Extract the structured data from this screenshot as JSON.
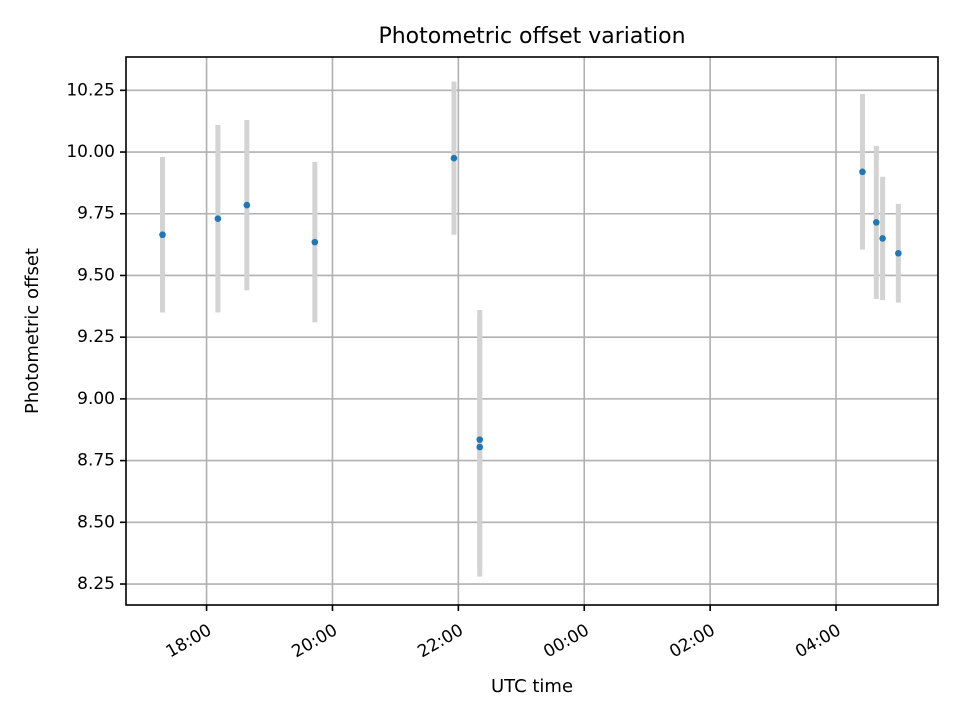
{
  "chart_data": {
    "type": "scatter",
    "title": "Photometric offset variation",
    "xlabel": "UTC time",
    "ylabel": "Photometric offset",
    "x_axis": {
      "type": "time",
      "range_hours_utc": [
        16.72,
        29.62
      ],
      "ticks": [
        {
          "hour": 18,
          "label": "18:00"
        },
        {
          "hour": 20,
          "label": "20:00"
        },
        {
          "hour": 22,
          "label": "22:00"
        },
        {
          "hour": 24,
          "label": "00:00"
        },
        {
          "hour": 26,
          "label": "02:00"
        },
        {
          "hour": 28,
          "label": "04:00"
        }
      ],
      "tick_label_rotation": -30
    },
    "y_axis": {
      "range": [
        8.165,
        10.385
      ],
      "ticks": [
        8.25,
        8.5,
        8.75,
        9.0,
        9.25,
        9.5,
        9.75,
        10.0,
        10.25
      ],
      "tick_labels": [
        "8.25",
        "8.50",
        "8.75",
        "9.00",
        "9.25",
        "9.50",
        "9.75",
        "10.00",
        "10.25"
      ]
    },
    "grid": true,
    "marker_color": "#1f77b4",
    "errorbar_color": "#d3d3d3",
    "points": [
      {
        "time": "17:18",
        "hour": 17.3,
        "y": 9.665,
        "err": 0.315
      },
      {
        "time": "18:11",
        "hour": 18.18,
        "y": 9.73,
        "err": 0.38
      },
      {
        "time": "18:38",
        "hour": 18.64,
        "y": 9.785,
        "err": 0.345
      },
      {
        "time": "19:43",
        "hour": 19.72,
        "y": 9.635,
        "err": 0.325
      },
      {
        "time": "21:56",
        "hour": 21.93,
        "y": 9.975,
        "err": 0.31
      },
      {
        "time": "22:21",
        "hour": 22.34,
        "y": 8.835,
        "err": 0.525
      },
      {
        "time": "22:21",
        "hour": 22.34,
        "y": 8.805,
        "err": 0.525
      },
      {
        "time": "04:25",
        "hour": 28.42,
        "y": 9.92,
        "err": 0.315
      },
      {
        "time": "04:38",
        "hour": 28.64,
        "y": 9.715,
        "err": 0.31
      },
      {
        "time": "04:44",
        "hour": 28.74,
        "y": 9.65,
        "err": 0.25
      },
      {
        "time": "04:59",
        "hour": 28.99,
        "y": 9.59,
        "err": 0.2
      }
    ]
  }
}
